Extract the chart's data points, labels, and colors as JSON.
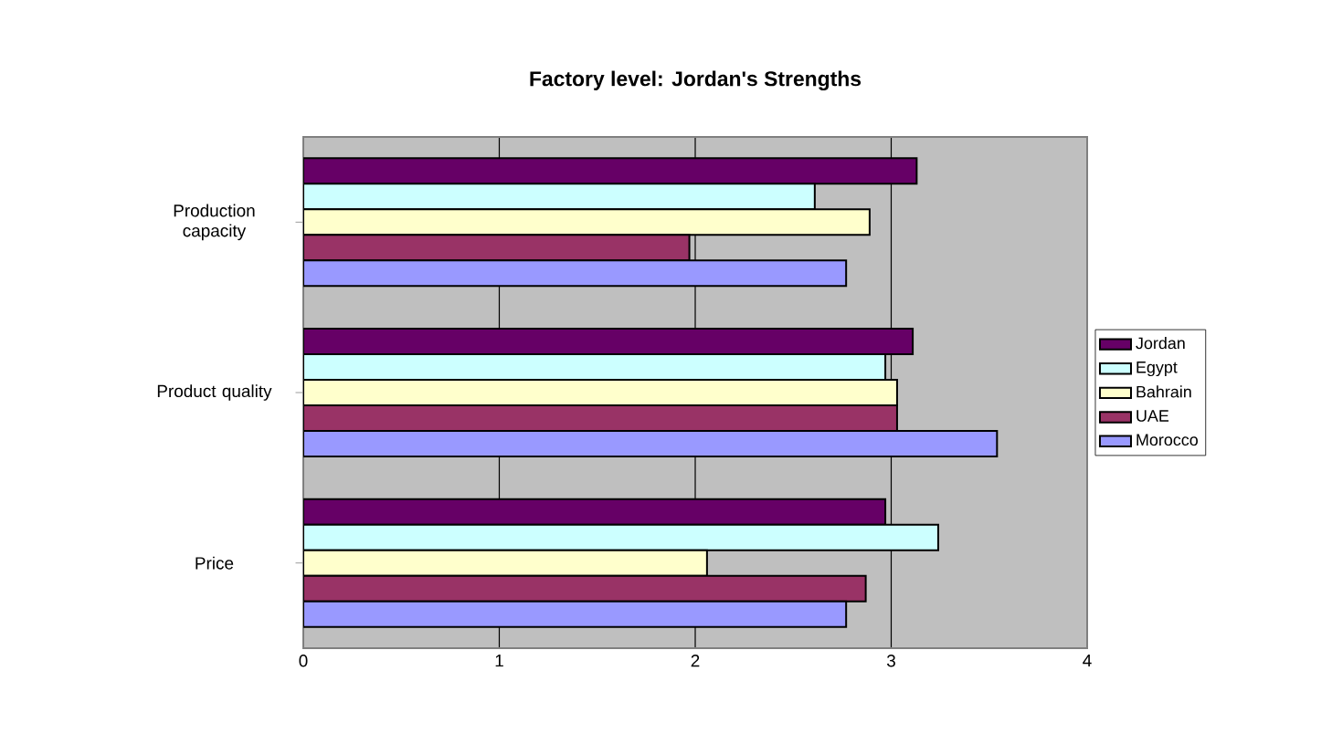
{
  "chart_data": {
    "type": "bar",
    "orientation": "horizontal",
    "title": "Factory level: Jordan's Strengths",
    "categories": [
      "Production capacity",
      "Product quality",
      "Price"
    ],
    "series": [
      {
        "name": "Jordan",
        "color": "#660066",
        "values": [
          3.13,
          3.11,
          2.97
        ]
      },
      {
        "name": "Egypt",
        "color": "#ccffff",
        "values": [
          2.61,
          2.97,
          3.24
        ]
      },
      {
        "name": "Bahrain",
        "color": "#ffffcc",
        "values": [
          2.89,
          3.03,
          2.06
        ]
      },
      {
        "name": "UAE",
        "color": "#993366",
        "values": [
          1.97,
          3.03,
          2.87
        ]
      },
      {
        "name": "Morocco",
        "color": "#9999ff",
        "values": [
          2.77,
          3.54,
          2.77
        ]
      }
    ],
    "xlim": [
      0,
      4
    ],
    "xticks": [
      0,
      1,
      2,
      3,
      4
    ],
    "grid": "x",
    "legend": "right"
  }
}
